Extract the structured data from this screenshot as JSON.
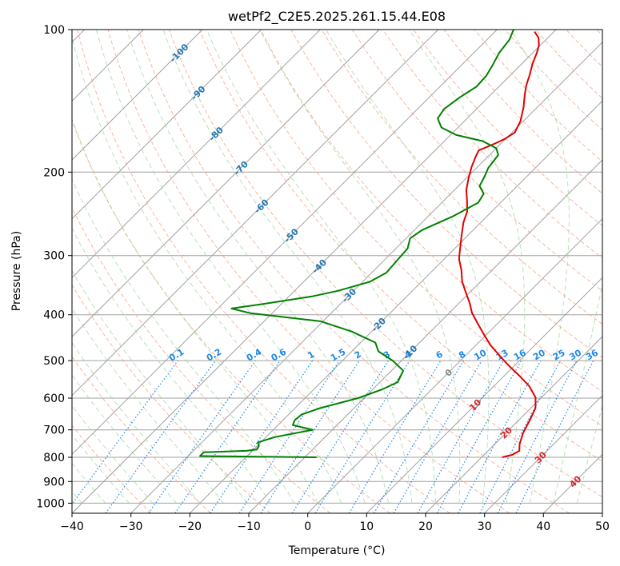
{
  "chart_data": {
    "type": "line",
    "title": "wetPf2_C2E5.2025.261.15.44.E08",
    "xlabel": "Temperature (°C)",
    "ylabel": "Pressure (hPa)",
    "xlim": [
      -40,
      50
    ],
    "ylim": [
      1050,
      100
    ],
    "y_scale": "log",
    "grid": true,
    "x_ticks": [
      "−40",
      "−30",
      "−20",
      "−10",
      "0",
      "10",
      "20",
      "30",
      "40",
      "50"
    ],
    "y_ticks": [
      "100",
      "200",
      "300",
      "400",
      "500",
      "600",
      "700",
      "800",
      "900",
      "1000"
    ],
    "skew": "skew-T log-p",
    "colors": {
      "temperature": "#e00000",
      "dewpoint": "#008000",
      "isotherm": "#a0a0a0",
      "dry_adiabat": "#f4a58a",
      "moist_adiabat": "#9ad39a",
      "mixing_ratio": "#1e88e5",
      "dry_label": "#d62728",
      "moist_label": "#1f77b4"
    },
    "series": [
      {
        "name": "",
        "role": "temperature",
        "points": [
          [
            23.5,
            800
          ],
          [
            24.8,
            790
          ],
          [
            25.3,
            775
          ],
          [
            24.2,
            750
          ],
          [
            22.9,
            710
          ],
          [
            21.8,
            665
          ],
          [
            20.8,
            630
          ],
          [
            19.0,
            598
          ],
          [
            16.0,
            566
          ],
          [
            12.8,
            540
          ],
          [
            9.0,
            512
          ],
          [
            5.8,
            488
          ],
          [
            2.5,
            464
          ],
          [
            -0.5,
            440
          ],
          [
            -3.3,
            418
          ],
          [
            -6.2,
            396
          ],
          [
            -8.2,
            378
          ],
          [
            -10.8,
            358
          ],
          [
            -13.2,
            340
          ],
          [
            -15.2,
            322
          ],
          [
            -17.5,
            305
          ],
          [
            -19.3,
            288
          ],
          [
            -21.3,
            270
          ],
          [
            -23.0,
            255
          ],
          [
            -24.2,
            242
          ],
          [
            -26.0,
            230
          ],
          [
            -28.0,
            218
          ],
          [
            -29.6,
            206
          ],
          [
            -31.0,
            195
          ],
          [
            -32.0,
            186
          ],
          [
            -32.6,
            180
          ],
          [
            -31.0,
            174
          ],
          [
            -30.1,
            170
          ],
          [
            -29.5,
            165
          ],
          [
            -30.5,
            156
          ],
          [
            -32.3,
            146
          ],
          [
            -34.3,
            137
          ],
          [
            -35.6,
            131
          ],
          [
            -36.7,
            125
          ],
          [
            -38.2,
            118
          ],
          [
            -39.3,
            112
          ],
          [
            -40.2,
            108
          ],
          [
            -41.6,
            104
          ],
          [
            -43.3,
            101
          ]
        ],
        "labels": []
      },
      {
        "name": "",
        "role": "dewpoint",
        "points": [
          [
            -8.0,
            800
          ],
          [
            -28.0,
            795
          ],
          [
            -28.0,
            781
          ],
          [
            -21.0,
            775
          ],
          [
            -19.5,
            770
          ],
          [
            -19.7,
            757
          ],
          [
            -20.5,
            744
          ],
          [
            -18.5,
            725
          ],
          [
            -13.3,
            700
          ],
          [
            -17.5,
            684
          ],
          [
            -18.0,
            668
          ],
          [
            -17.8,
            650
          ],
          [
            -15.8,
            630
          ],
          [
            -11.0,
            600
          ],
          [
            -8.4,
            575
          ],
          [
            -7.0,
            555
          ],
          [
            -8.0,
            525
          ],
          [
            -11.5,
            500
          ],
          [
            -15.5,
            478
          ],
          [
            -17.5,
            458
          ],
          [
            -23.4,
            434
          ],
          [
            -30.4,
            413
          ],
          [
            -43.7,
            397
          ],
          [
            -47.7,
            388
          ],
          [
            -43.3,
            380
          ],
          [
            -36.1,
            366
          ],
          [
            -32.6,
            356
          ],
          [
            -28.8,
            341
          ],
          [
            -27.5,
            326
          ],
          [
            -27.8,
            305
          ],
          [
            -28.0,
            290
          ],
          [
            -29.3,
            276
          ],
          [
            -28.7,
            265
          ],
          [
            -25.8,
            248
          ],
          [
            -23.8,
            232
          ],
          [
            -24.4,
            222
          ],
          [
            -26.4,
            214
          ],
          [
            -27.2,
            204
          ],
          [
            -28.0,
            196
          ],
          [
            -28.5,
            184
          ],
          [
            -30.0,
            178
          ],
          [
            -33.5,
            172
          ],
          [
            -39.0,
            167
          ],
          [
            -42.8,
            161
          ],
          [
            -45.0,
            154
          ],
          [
            -45.5,
            147
          ],
          [
            -44.8,
            139
          ],
          [
            -43.8,
            132
          ],
          [
            -44.0,
            125
          ],
          [
            -44.7,
            119
          ],
          [
            -45.7,
            112
          ],
          [
            -46.2,
            105
          ],
          [
            -47.2,
            100
          ]
        ],
        "labels": []
      }
    ],
    "isotherm_labels": [
      "-100",
      "-90",
      "-80",
      "-70",
      "-60",
      "-50",
      "-40",
      "-30",
      "-20",
      "-10",
      "0",
      "10",
      "20",
      "30",
      "40"
    ],
    "mixing_ratio_labels": [
      "0.1",
      "0.2",
      "0.4",
      "0.6",
      "1",
      "1.5",
      "2",
      "3",
      "4",
      "6",
      "8",
      "10",
      "13",
      "16",
      "20",
      "25",
      "30",
      "36"
    ]
  }
}
